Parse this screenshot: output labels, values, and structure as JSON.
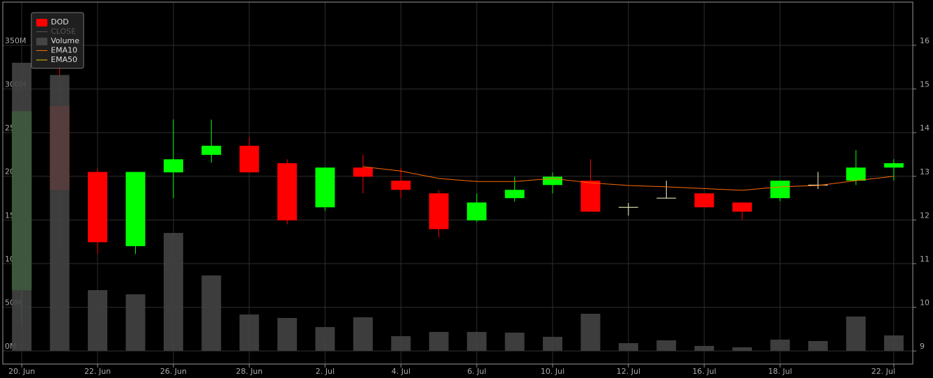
{
  "chart_data": {
    "type": "candlestick",
    "categories": [
      "20. Jun",
      null,
      "22. Jun",
      null,
      "26. Jun",
      null,
      "28. Jun",
      null,
      "2. Jul",
      null,
      "4. Jul",
      null,
      "6. Jul",
      null,
      "10. Jul",
      null,
      "12. Jul",
      null,
      "16. Jul",
      null,
      "18. Jul",
      null,
      null,
      "22. Jul"
    ],
    "series": [
      {
        "name": "DOD",
        "type": "candlestick",
        "color": "#ff0000",
        "up_color": "#00ff00",
        "down_color": "#ff0000",
        "flat_color": "#ffffcc",
        "open": [
          10.39,
          14.61,
          13.1,
          11.4,
          13.09,
          13.49,
          13.7,
          13.3,
          12.29,
          13.2,
          12.9,
          12.61,
          11.99,
          12.5,
          12.8,
          12.9,
          12.29,
          12.5,
          12.61,
          12.4,
          12.5,
          12.8,
          12.9,
          13.2
        ],
        "high": [
          14.49,
          15.64,
          13.18,
          13.1,
          14.3,
          14.3,
          13.9,
          13.39,
          13.2,
          13.5,
          13.2,
          12.69,
          12.61,
          12.99,
          13.09,
          13.39,
          12.39,
          12.9,
          12.61,
          12.4,
          12.9,
          13.1,
          13.6,
          13.39
        ],
        "low": [
          9.65,
          11.32,
          11.22,
          11.22,
          12.5,
          13.31,
          13.09,
          11.9,
          12.21,
          12.61,
          12.5,
          11.6,
          11.95,
          12.42,
          12.61,
          12.19,
          12.1,
          12.5,
          12.29,
          12.0,
          12.43,
          12.71,
          12.8,
          12.9
        ],
        "close": [
          14.49,
          12.69,
          11.49,
          13.1,
          13.39,
          13.7,
          13.09,
          11.99,
          13.2,
          12.99,
          12.69,
          11.79,
          12.4,
          12.69,
          12.99,
          12.19,
          12.29,
          12.5,
          12.29,
          12.19,
          12.9,
          12.8,
          13.2,
          13.3
        ]
      },
      {
        "name": "CLOSE",
        "color": "#555555",
        "hidden": true
      },
      {
        "name": "Volume",
        "type": "bar",
        "axis": "y2",
        "color": "#444444",
        "values": [
          330,
          316,
          69.5,
          64.7,
          135,
          86.3,
          41.6,
          37.6,
          27.2,
          38.4,
          16.8,
          21.6,
          21.6,
          20.8,
          16,
          42.4,
          8.8,
          12,
          5.6,
          4,
          12.8,
          11.2,
          39.2,
          17.6
        ]
      },
      {
        "name": "EMA10",
        "type": "line",
        "color": "#ff6a00",
        "values": [
          null,
          null,
          null,
          null,
          null,
          null,
          null,
          null,
          null,
          13.22,
          13.12,
          12.95,
          12.88,
          12.88,
          12.95,
          12.85,
          12.79,
          12.76,
          12.72,
          12.68,
          12.76,
          12.79,
          12.9,
          13.0
        ]
      },
      {
        "name": "EMA50",
        "type": "line",
        "color": "#e6c200"
      }
    ],
    "ylim": [
      8.7,
      16.99
    ],
    "yticks": [
      9,
      10,
      11,
      12,
      13,
      14,
      15,
      16
    ],
    "y2lim": [
      -15.2,
      399.5
    ],
    "y2ticks": [
      {
        "value": 0,
        "label": "0M"
      },
      {
        "value": 50,
        "label": "50M"
      },
      {
        "value": 100,
        "label": "100M"
      },
      {
        "value": 150,
        "label": "150M"
      },
      {
        "value": 200,
        "label": "200M"
      },
      {
        "value": 250,
        "label": "250M"
      },
      {
        "value": 300,
        "label": "300M"
      },
      {
        "value": 350,
        "label": "350M"
      }
    ],
    "grid": true,
    "legend": "upper left"
  }
}
